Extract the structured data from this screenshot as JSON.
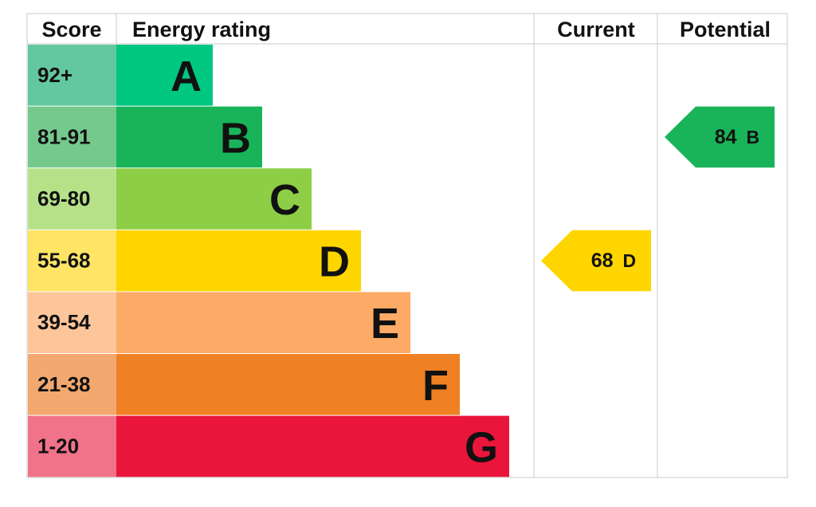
{
  "header": {
    "score": "Score",
    "energy_rating": "Energy rating",
    "current": "Current",
    "potential": "Potential"
  },
  "bands": [
    {
      "range": "92+",
      "letter": "A",
      "color": "#00c781",
      "score_color": "#63c8a0"
    },
    {
      "range": "81-91",
      "letter": "B",
      "color": "#19b459",
      "score_color": "#75c98d"
    },
    {
      "range": "69-80",
      "letter": "C",
      "color": "#8dce46",
      "score_color": "#b6e189"
    },
    {
      "range": "55-68",
      "letter": "D",
      "color": "#ffd500",
      "score_color": "#ffe466"
    },
    {
      "range": "39-54",
      "letter": "E",
      "color": "#fcaa65",
      "score_color": "#fdc59a"
    },
    {
      "range": "21-38",
      "letter": "F",
      "color": "#ef8023",
      "score_color": "#f3a86f"
    },
    {
      "range": "1-20",
      "letter": "G",
      "color": "#e9153b",
      "score_color": "#f07389"
    }
  ],
  "current": {
    "value": 68,
    "rating": "D"
  },
  "potential": {
    "value": 84,
    "rating": "B"
  }
}
